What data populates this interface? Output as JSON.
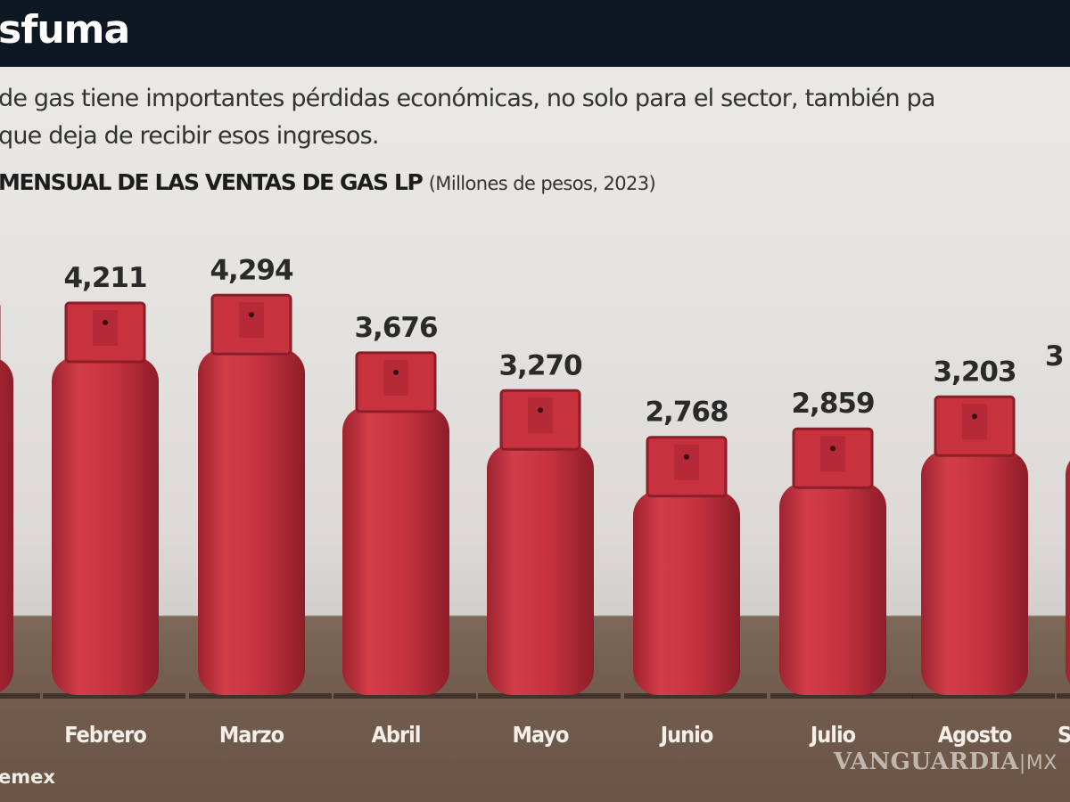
{
  "header": {
    "title": "sfuma"
  },
  "intro": {
    "line1": "de gas tiene importantes pérdidas económicas, no solo para el sector, también pa",
    "line2": "que deja de recibir esos ingresos."
  },
  "subtitle": {
    "bold": "MENSUAL DE LAS VENTAS DE GAS LP",
    "unit": "(Millones de pesos, 2023)"
  },
  "source": "emex",
  "watermark": {
    "brand": "VANGUARDIA",
    "suffix": "|MX"
  },
  "colors": {
    "header_bg": "#0d1822",
    "cylinder": "#c8323f",
    "floor": "#735e50"
  },
  "chart_data": {
    "type": "bar",
    "style": "pictogram (gas cylinders)",
    "title": "MENSUAL DE LAS VENTAS DE GAS LP",
    "unit": "(Millones de pesos, 2023)",
    "categories": [
      "Febrero",
      "Marzo",
      "Abril",
      "Mayo",
      "Junio",
      "Julio",
      "Agosto"
    ],
    "values": [
      4211,
      4294,
      3676,
      3270,
      2768,
      2859,
      3203
    ],
    "value_labels": [
      "4,211",
      "4,294",
      "3,676",
      "3,270",
      "2,768",
      "2,859",
      "3,203"
    ],
    "partial_right": {
      "value_fragment": "3",
      "label_fragment": "S"
    },
    "grid": false,
    "legend": "none"
  }
}
